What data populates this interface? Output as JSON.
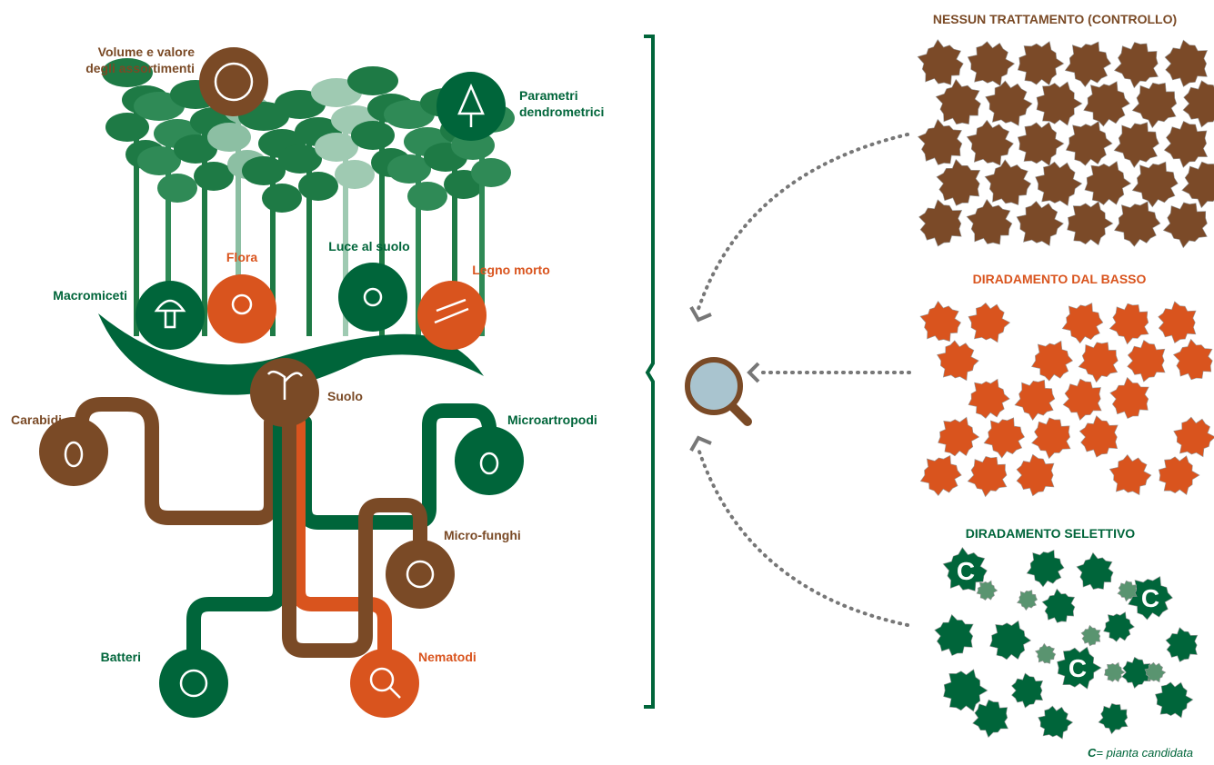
{
  "indicators": [
    {
      "lines": [
        "Volume e valore",
        "degli assortimenti"
      ]
    },
    {
      "lines": [
        "Parametri",
        "dendrometrici"
      ]
    },
    {
      "lines": [
        "Macromiceti"
      ]
    },
    {
      "lines": [
        "Flora"
      ]
    },
    {
      "lines": [
        "Luce al suolo"
      ]
    },
    {
      "lines": [
        "Legno morto"
      ]
    },
    {
      "lines": [
        "Suolo"
      ]
    },
    {
      "lines": [
        "Carabidi"
      ]
    },
    {
      "lines": [
        "Microartropodi"
      ]
    },
    {
      "lines": [
        "Micro-funghi"
      ]
    },
    {
      "lines": [
        "Batteri"
      ]
    },
    {
      "lines": [
        "Nematodi"
      ]
    }
  ],
  "treatments": [
    {
      "title": "NESSUN TRATTAMENTO (CONTROLLO)"
    },
    {
      "title": "DIRADAMENTO DAL BASSO"
    },
    {
      "title": "DIRADAMENTO SELETTIVO"
    }
  ],
  "candidate_marks": [
    "C",
    "C",
    "C"
  ],
  "legend": {
    "symbol": "C",
    "text": "= pianta candidata"
  }
}
